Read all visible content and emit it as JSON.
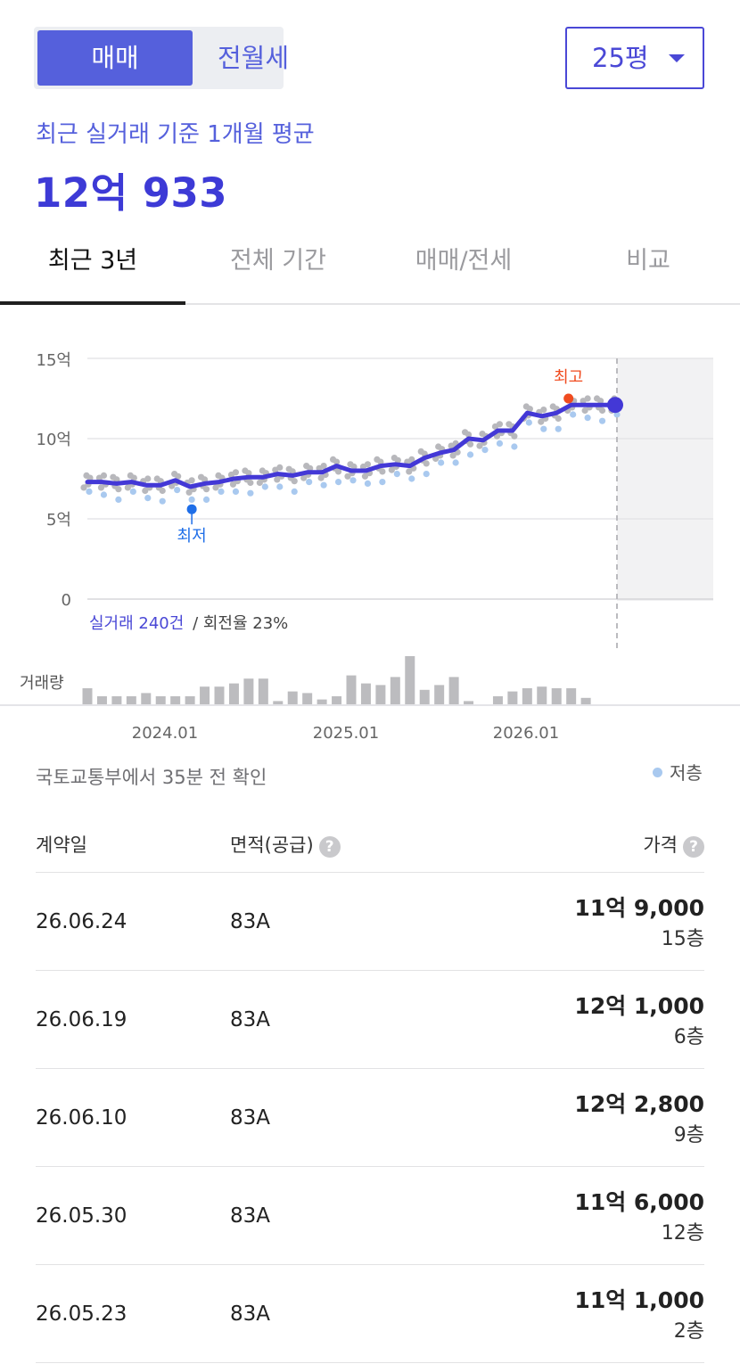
{
  "trade_toggle": {
    "sale_label": "매매",
    "rent_label": "전월세"
  },
  "size_select": {
    "value": "25평"
  },
  "summary": {
    "label": "최근 실거래 기준 1개월 평균",
    "price": "12억 933"
  },
  "tabs": [
    {
      "label": "최근 3년"
    },
    {
      "label": "전체 기간"
    },
    {
      "label": "매매/전세"
    },
    {
      "label": "비교"
    }
  ],
  "chart_data": {
    "type": "line",
    "y_unit": "억",
    "y_ticks": [
      "15억",
      "10억",
      "5억",
      "0"
    ],
    "ylim": [
      0,
      15
    ],
    "x_ticks": [
      "2024.01",
      "2025.01",
      "2026.01"
    ],
    "x": [
      "2023.06",
      "2023.07",
      "2023.08",
      "2023.09",
      "2023.10",
      "2023.11",
      "2023.12",
      "2024.01",
      "2024.02",
      "2024.03",
      "2024.04",
      "2024.05",
      "2024.06",
      "2024.07",
      "2024.08",
      "2024.09",
      "2024.10",
      "2024.11",
      "2024.12",
      "2025.01",
      "2025.02",
      "2025.03",
      "2025.04",
      "2025.05",
      "2025.06",
      "2025.07",
      "2025.08",
      "2025.09",
      "2025.10",
      "2025.11",
      "2025.12",
      "2026.01",
      "2026.02",
      "2026.03",
      "2026.04",
      "2026.05",
      "2026.06"
    ],
    "series": [
      {
        "values": [
          7.3,
          7.3,
          7.2,
          7.3,
          7.1,
          7.1,
          7.4,
          7.0,
          7.2,
          7.3,
          7.5,
          7.6,
          7.6,
          7.8,
          7.7,
          7.9,
          7.9,
          8.3,
          8.0,
          8.0,
          8.3,
          8.4,
          8.3,
          8.8,
          9.1,
          9.3,
          10.0,
          9.9,
          10.5,
          10.5,
          11.6,
          11.4,
          11.6,
          12.1,
          12.1,
          12.1,
          12.1
        ]
      }
    ],
    "volume_label": "거래량",
    "volume": [
      10,
      5,
      5,
      5,
      7,
      5,
      5,
      5,
      11,
      11,
      13,
      16,
      16,
      2,
      8,
      7,
      3,
      5,
      18,
      13,
      12,
      17,
      30,
      9,
      12,
      17,
      2,
      0,
      5,
      8,
      10,
      11,
      10,
      10,
      4,
      0,
      0
    ],
    "annotations": {
      "high_label": "최고",
      "low_label": "최저",
      "high_value": 12.5,
      "low_value": 5.6
    },
    "deal_count_label": "실거래 240건",
    "turnover_label": "/ 회전율 23%"
  },
  "colors": {
    "accent": "#4a48d6",
    "line": "#4338d6",
    "high": "#f04b1f",
    "low": "#1e6ee8",
    "low_floor_dot": "#a9c9ef",
    "dot": "#b8b8bc"
  },
  "updated_text": "국토교통부에서 35분 전 확인",
  "legend_low_floor": "저층",
  "table": {
    "headers": {
      "date": "계약일",
      "area": "면적(공급)",
      "price": "가격",
      "help_icon": "?"
    },
    "rows": [
      {
        "date": "26.06.24",
        "area": "83A",
        "price": "11억 9,000",
        "floor": "15층"
      },
      {
        "date": "26.06.19",
        "area": "83A",
        "price": "12억 1,000",
        "floor": "6층"
      },
      {
        "date": "26.06.10",
        "area": "83A",
        "price": "12억 2,800",
        "floor": "9층"
      },
      {
        "date": "26.05.30",
        "area": "83A",
        "price": "11억 6,000",
        "floor": "12층"
      },
      {
        "date": "26.05.23",
        "area": "83A",
        "price": "11억 1,000",
        "floor": "2층"
      }
    ]
  }
}
